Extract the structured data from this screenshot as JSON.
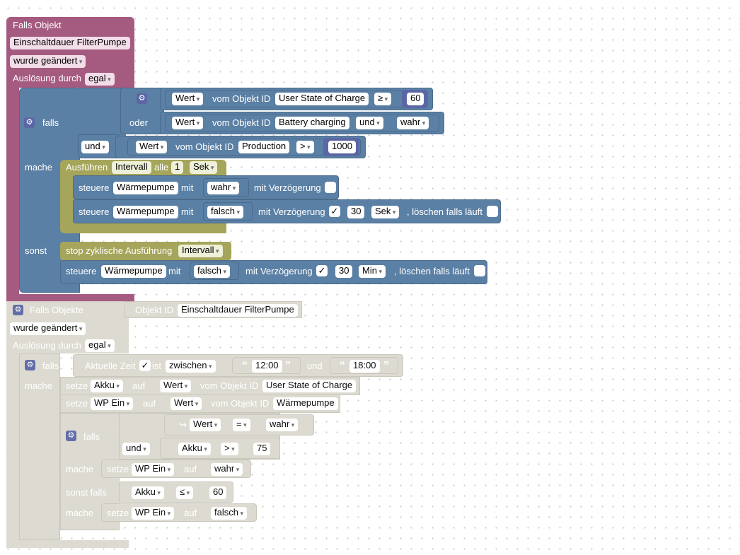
{
  "colors": {
    "event": "#a55b80",
    "event_dark": "#8c4b6c",
    "logic": "#5b80a5",
    "logic_dark": "#4b6b8c",
    "timer": "#a5a55b",
    "math": "#5b67a5",
    "disabled": "#dcdacf",
    "field": "#ffffff",
    "event_field": "#f2dde8"
  },
  "b1": {
    "title": "Falls Objekt",
    "object_id": "Einschaltdauer FilterPumpe",
    "changed": "wurde geändert",
    "trigger_label": "Auslösung durch",
    "trigger_value": "egal",
    "if_label": "falls",
    "do_label": "mache",
    "else_label": "sonst",
    "or_label": "oder",
    "and_label": "und",
    "cond1": {
      "prop": "Wert",
      "from_label": "vom Objekt ID",
      "obj": "User State of Charge",
      "op": "≥",
      "num": "60"
    },
    "cond2": {
      "prop": "Wert",
      "from_label": "vom Objekt ID",
      "obj": "Battery charging",
      "op": "und",
      "val": "wahr"
    },
    "cond3": {
      "prop": "Wert",
      "from_label": "vom Objekt ID",
      "obj": "Production",
      "op": ">",
      "num": "1000"
    },
    "interval": {
      "run_label": "Ausführen",
      "name": "Intervall",
      "every_label": "alle",
      "num": "1",
      "unit": "Sek"
    },
    "ctrl1": {
      "label": "steuere",
      "obj": "Wärmepumpe",
      "with_label": "mit",
      "val": "wahr",
      "delay_label": "mit Verzögerung"
    },
    "ctrl2": {
      "label": "steuere",
      "obj": "Wärmepumpe",
      "with_label": "mit",
      "val": "falsch",
      "delay_label": "mit Verzögerung",
      "check": "✓",
      "num": "30",
      "unit": "Sek",
      "clear_label": ", löschen falls läuft"
    },
    "stop": {
      "label": "stop zyklische Ausführung",
      "name": "Intervall"
    },
    "ctrl3": {
      "label": "steuere",
      "obj": "Wärmepumpe",
      "with_label": "mit",
      "val": "falsch",
      "delay_label": "mit Verzögerung",
      "check": "✓",
      "num": "30",
      "unit": "Min",
      "clear_label": ", löschen falls läuft"
    }
  },
  "b2": {
    "title": "Falls Objekte",
    "obj_label": "Objekt ID",
    "object_id": "Einschaltdauer FilterPumpe",
    "changed": "wurde geändert",
    "trigger_label": "Auslösung durch",
    "trigger_value": "egal",
    "if_label": "falls",
    "do_label": "mache",
    "time": {
      "label": "Aktuelle Zeit",
      "check": "✓",
      "is_label": "ist",
      "mode": "zwischen",
      "from": "12:00",
      "and_label": "und",
      "to": "18:00",
      "open_q": "“",
      "close_q": "”"
    },
    "set1": {
      "label": "setze",
      "var": "Akku",
      "to_label": "auf",
      "prop": "Wert",
      "from_label": "vom Objekt ID",
      "obj": "User State of Charge"
    },
    "set2": {
      "label": "setze",
      "var": "WP Ein",
      "to_label": "auf",
      "prop": "Wert",
      "from_label": "vom Objekt ID",
      "obj": "Wärmepumpe"
    },
    "inner_if_label": "falls",
    "arrow": "↪",
    "c1": {
      "prop": "Wert",
      "op": "=",
      "val": "wahr"
    },
    "and_label": "und",
    "c2": {
      "var": "Akku",
      "op": ">",
      "num": "75"
    },
    "do1_label": "mache",
    "do1": {
      "label": "setze",
      "var": "WP Ein",
      "to_label": "auf",
      "val": "wahr"
    },
    "elseif_label": "sonst falls",
    "c3": {
      "var": "Akku",
      "op": "≤",
      "num": "60"
    },
    "do2_label": "mache",
    "do2": {
      "label": "setze",
      "var": "WP Ein",
      "to_label": "auf",
      "val": "falsch"
    }
  }
}
